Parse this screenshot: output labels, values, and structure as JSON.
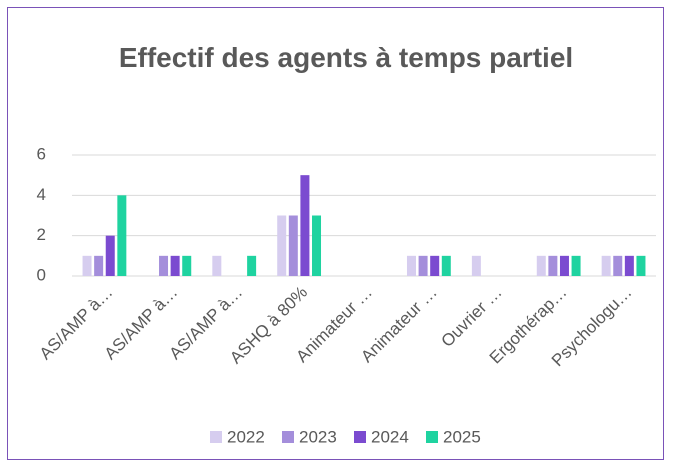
{
  "chart_data": {
    "type": "bar",
    "title": "Effectif des agents à temps partiel",
    "categories": [
      "AS/AMP à…",
      "AS/AMP à…",
      "AS/AMP à…",
      "ASHQ à 80%",
      "Animateur …",
      "Animateur …",
      "Ouvrier …",
      "Ergothérap…",
      "Psychologu…"
    ],
    "series": [
      {
        "name": "2022",
        "color": "#d6cdef",
        "values": [
          1,
          0,
          1,
          3,
          0,
          1,
          1,
          1,
          1
        ]
      },
      {
        "name": "2023",
        "color": "#a48edb",
        "values": [
          1,
          1,
          0,
          3,
          0,
          1,
          0,
          1,
          1
        ]
      },
      {
        "name": "2024",
        "color": "#7b4bd0",
        "values": [
          2,
          1,
          0,
          5,
          0,
          1,
          0,
          1,
          1
        ]
      },
      {
        "name": "2025",
        "color": "#1fd3a0",
        "values": [
          4,
          1,
          1,
          3,
          0,
          1,
          0,
          1,
          1
        ]
      }
    ],
    "ylim": [
      0,
      6
    ],
    "yticks": [
      0,
      2,
      4,
      6
    ],
    "grid": true,
    "legend": "bottom"
  }
}
